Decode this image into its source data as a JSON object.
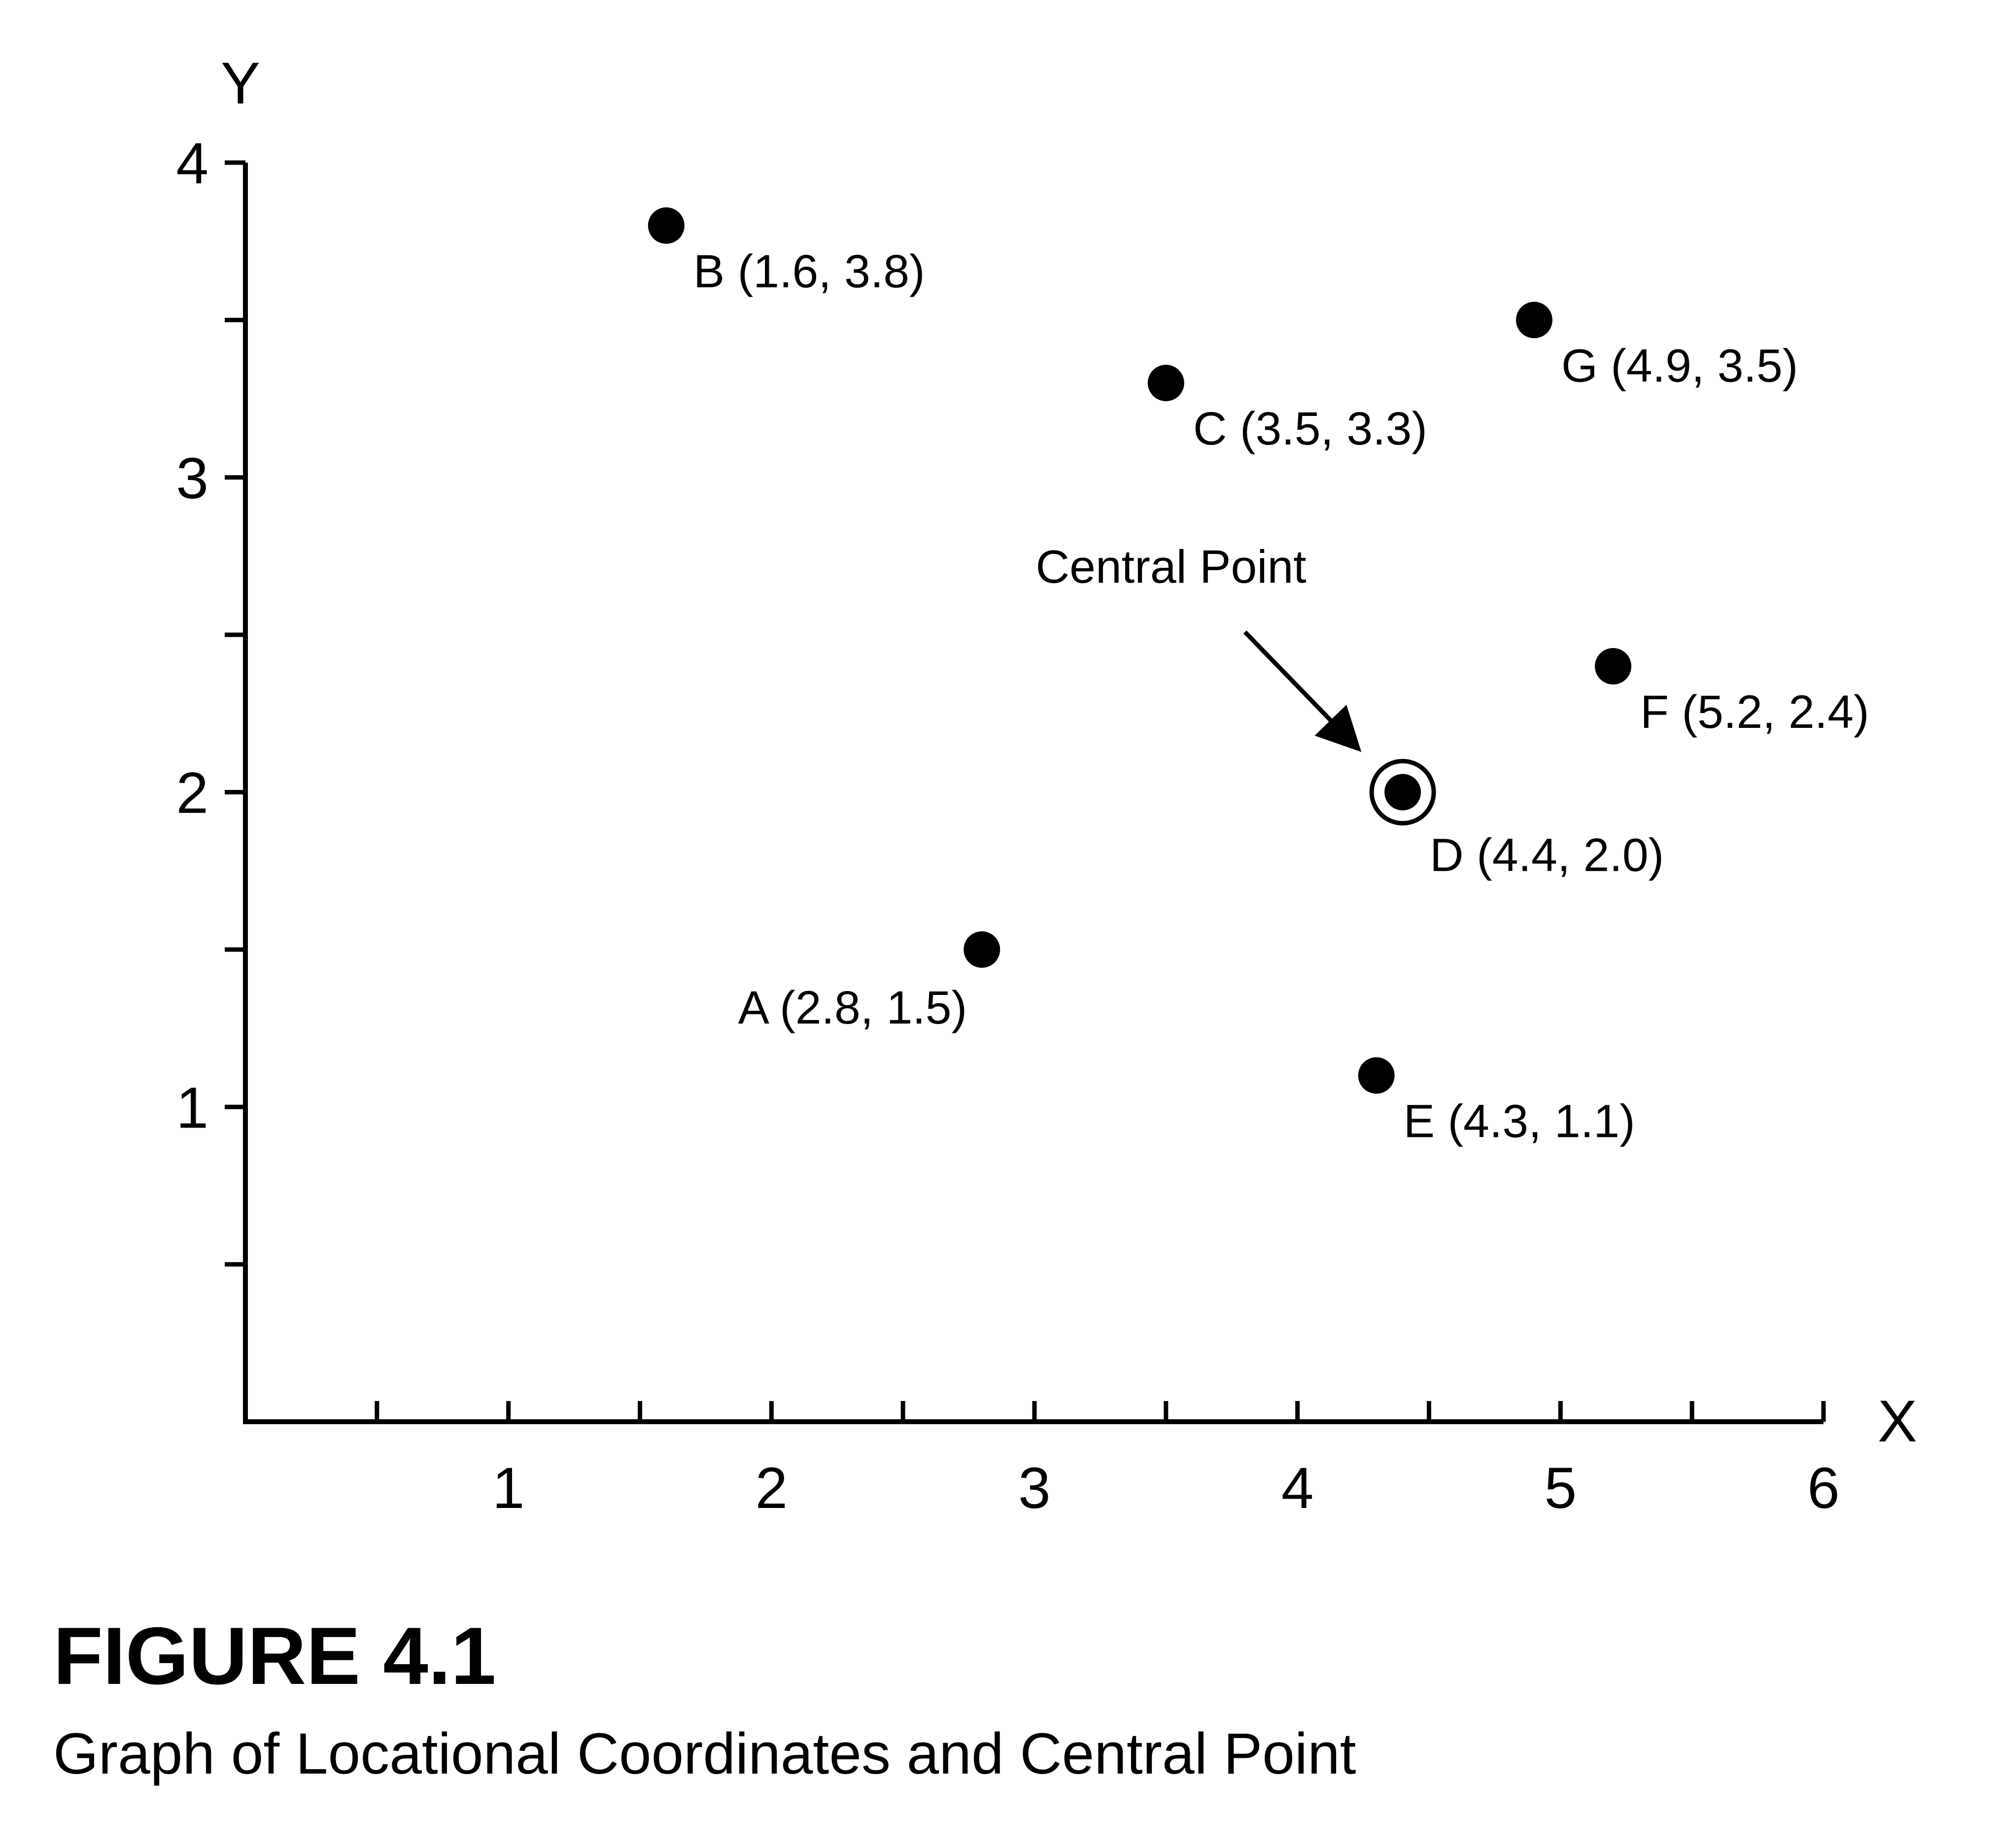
{
  "figure": {
    "number": "FIGURE 4.1",
    "caption": "Graph of Locational Coordinates and Central Point"
  },
  "chart_data": {
    "type": "scatter",
    "title": "",
    "xlabel": "X",
    "ylabel": "Y",
    "xlim": [
      0,
      6
    ],
    "ylim": [
      0,
      4
    ],
    "x_ticks": [
      1,
      2,
      3,
      4,
      5,
      6
    ],
    "y_ticks": [
      1,
      2,
      3,
      4
    ],
    "x_minor_step": 0.5,
    "y_minor_step": 0.5,
    "grid": false,
    "points": [
      {
        "id": "B",
        "x": 1.6,
        "y": 3.8,
        "label": "B (1.6, 3.8)",
        "label_pos": "below-right"
      },
      {
        "id": "C",
        "x": 3.5,
        "y": 3.3,
        "label": "C (3.5, 3.3)",
        "label_pos": "below-right"
      },
      {
        "id": "G",
        "x": 4.9,
        "y": 3.5,
        "label": "G (4.9, 3.5)",
        "label_pos": "below-right"
      },
      {
        "id": "F",
        "x": 5.2,
        "y": 2.4,
        "label": "F (5.2, 2.4)",
        "label_pos": "below-right"
      },
      {
        "id": "D",
        "x": 4.4,
        "y": 2.0,
        "label": "D (4.4, 2.0)",
        "label_pos": "below-right",
        "highlight": true
      },
      {
        "id": "A",
        "x": 2.8,
        "y": 1.5,
        "label": "A (2.8, 1.5)",
        "label_pos": "below-left"
      },
      {
        "id": "E",
        "x": 4.3,
        "y": 1.1,
        "label": "E (4.3, 1.1)",
        "label_pos": "below-right"
      }
    ],
    "annotations": [
      {
        "text": "Central Point",
        "target": "D",
        "arrow": true
      }
    ],
    "colors": {
      "marker": "#000000",
      "axis": "#000000"
    }
  }
}
